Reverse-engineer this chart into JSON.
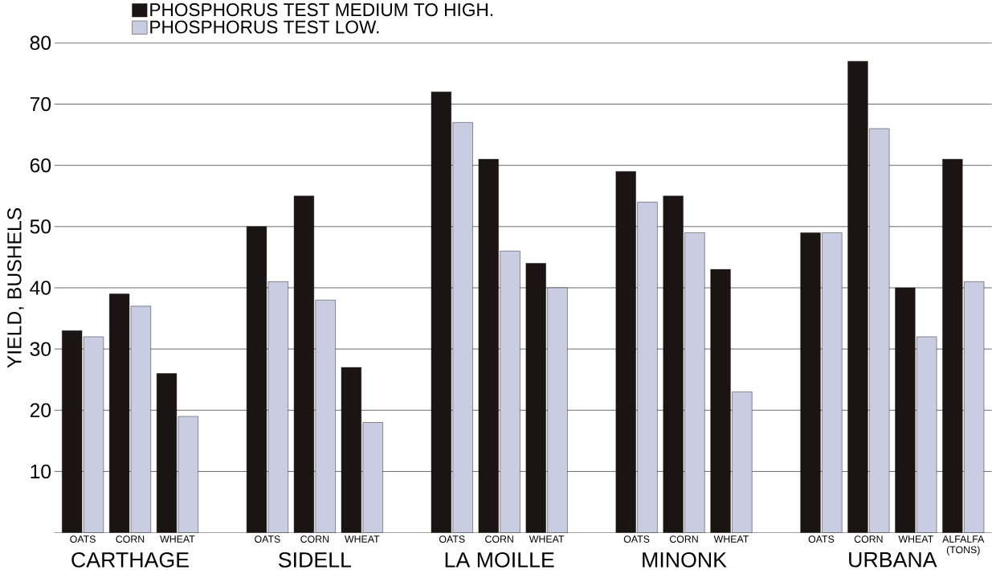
{
  "chart_data": {
    "type": "bar",
    "ylabel": "YIELD, BUSHELS",
    "categories": [
      "OATS",
      "CORN",
      "WHEAT",
      "OATS",
      "CORN",
      "WHEAT",
      "OATS",
      "CORN",
      "WHEAT",
      "OATS",
      "CORN",
      "WHEAT",
      "OATS",
      "CORN",
      "WHEAT",
      "ALFALFA (TONS)"
    ],
    "series": [
      {
        "name": "PHOSPHORUS TEST MEDIUM TO HIGH.",
        "color": "#1a1414",
        "values": [
          33,
          39,
          26,
          50,
          55,
          27,
          72,
          61,
          44,
          59,
          55,
          43,
          49,
          77,
          40,
          61
        ]
      },
      {
        "name": "PHOSPHORUS TEST LOW.",
        "color": "#c9cde2",
        "values": [
          32,
          37,
          19,
          41,
          38,
          18,
          67,
          46,
          40,
          54,
          49,
          23,
          49,
          66,
          32,
          41
        ]
      }
    ],
    "annotations": [
      "CARTHAGE",
      "SIDELL",
      "LA MOILLE",
      "MINONK",
      "URBANA"
    ],
    "ylim": [
      0,
      80
    ],
    "yticks": [
      10,
      20,
      30,
      40,
      50,
      60,
      70,
      80
    ],
    "grid": "y",
    "legend": "top left"
  }
}
